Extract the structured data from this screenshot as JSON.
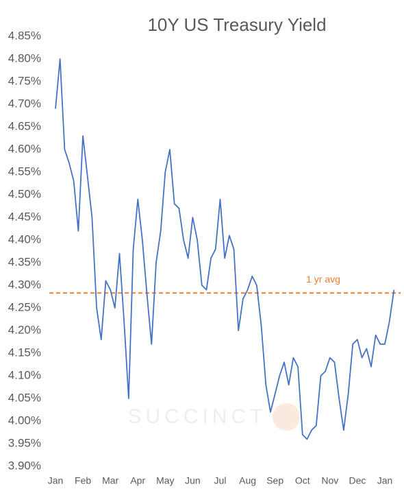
{
  "chart_data": {
    "type": "line",
    "title": "10Y US Treasury Yield",
    "watermark": "SUCCINCT",
    "color": "#4472c4",
    "categories": [
      "Jan",
      null,
      null,
      null,
      null,
      null,
      "Feb",
      null,
      null,
      null,
      null,
      null,
      "Mar",
      null,
      null,
      null,
      null,
      null,
      "Apr",
      null,
      null,
      null,
      null,
      null,
      "May",
      null,
      null,
      null,
      null,
      null,
      "Jun",
      null,
      null,
      null,
      null,
      null,
      "Jul",
      null,
      null,
      null,
      null,
      null,
      "Aug",
      null,
      null,
      null,
      null,
      null,
      "Sep",
      null,
      null,
      null,
      null,
      null,
      "Oct",
      null,
      null,
      null,
      null,
      null,
      "Nov",
      null,
      null,
      null,
      null,
      null,
      "Dec",
      null,
      null,
      null,
      null,
      null,
      "Jan",
      null,
      null
    ],
    "values": [
      4.69,
      4.8,
      4.6,
      4.57,
      4.53,
      4.42,
      4.63,
      4.54,
      4.45,
      4.25,
      4.18,
      4.31,
      4.29,
      4.25,
      4.37,
      4.22,
      4.05,
      4.38,
      4.49,
      4.4,
      4.28,
      4.17,
      4.35,
      4.42,
      4.55,
      4.6,
      4.48,
      4.47,
      4.4,
      4.36,
      4.45,
      4.4,
      4.3,
      4.29,
      4.36,
      4.38,
      4.49,
      4.36,
      4.41,
      4.38,
      4.2,
      4.27,
      4.29,
      4.32,
      4.3,
      4.21,
      4.08,
      4.02,
      4.06,
      4.1,
      4.13,
      4.08,
      4.14,
      4.12,
      3.97,
      3.96,
      3.98,
      3.99,
      4.1,
      4.11,
      4.14,
      4.13,
      4.05,
      3.98,
      4.06,
      4.17,
      4.18,
      4.14,
      4.16,
      4.12,
      4.19,
      4.17,
      4.17,
      4.22,
      4.29
    ],
    "avg_line": {
      "value": 4.283,
      "label": "1 yr avg",
      "color": "#ed7d31"
    },
    "ylim": [
      3.9,
      4.85
    ],
    "yticks": [
      {
        "value": 3.9,
        "label": "3.90%"
      },
      {
        "value": 3.95,
        "label": "3.95%"
      },
      {
        "value": 4.0,
        "label": "4.00%"
      },
      {
        "value": 4.05,
        "label": "4.05%"
      },
      {
        "value": 4.1,
        "label": "4.10%"
      },
      {
        "value": 4.15,
        "label": "4.15%"
      },
      {
        "value": 4.2,
        "label": "4.20%"
      },
      {
        "value": 4.25,
        "label": "4.25%"
      },
      {
        "value": 4.3,
        "label": "4.30%"
      },
      {
        "value": 4.35,
        "label": "4.35%"
      },
      {
        "value": 4.4,
        "label": "4.40%"
      },
      {
        "value": 4.45,
        "label": "4.45%"
      },
      {
        "value": 4.5,
        "label": "4.50%"
      },
      {
        "value": 4.55,
        "label": "4.55%"
      },
      {
        "value": 4.6,
        "label": "4.60%"
      },
      {
        "value": 4.65,
        "label": "4.65%"
      },
      {
        "value": 4.7,
        "label": "4.70%"
      },
      {
        "value": 4.75,
        "label": "4.75%"
      },
      {
        "value": 4.8,
        "label": "4.80%"
      },
      {
        "value": 4.85,
        "label": "4.85%"
      }
    ]
  }
}
